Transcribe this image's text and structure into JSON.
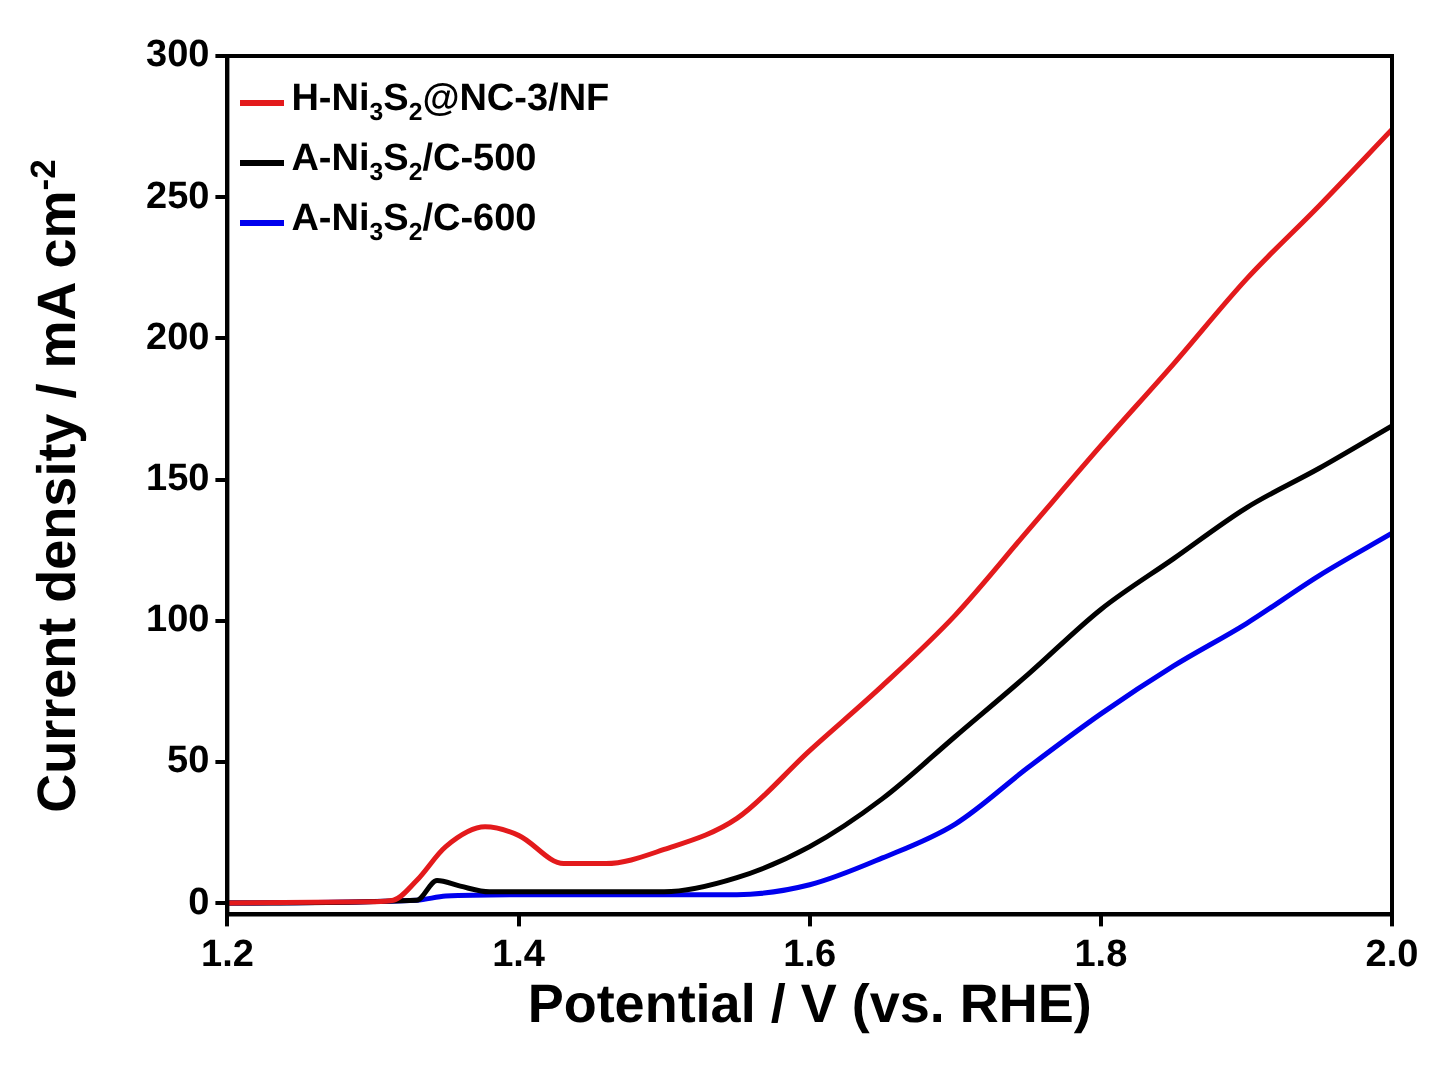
{
  "chart_data": {
    "type": "line",
    "xlabel": "Potential / V (vs. RHE)",
    "ylabel": "Current density / mA cm$^{-2}$",
    "xlim": [
      1.2,
      2.0
    ],
    "xticks": [
      {
        "value": 1.2,
        "label": "1.2"
      },
      {
        "value": 1.4,
        "label": "1.4"
      },
      {
        "value": 1.6,
        "label": "1.6"
      },
      {
        "value": 1.8,
        "label": "1.8"
      },
      {
        "value": 2.0,
        "label": "2.0"
      }
    ],
    "ylim": [
      -4,
      300
    ],
    "yticks": [
      0,
      50,
      100,
      150,
      200,
      250,
      300
    ],
    "grid": false,
    "legend": "top left",
    "marker": "none",
    "line_style": "solid",
    "series": [
      {
        "name": "H-Ni$_{3}$S$_{2}$@NC-3/NF",
        "color": "#e31a1c",
        "x": [
          1.2,
          1.3,
          1.314,
          1.33,
          1.35,
          1.377,
          1.4,
          1.431,
          1.46,
          1.5,
          1.55,
          1.6,
          1.65,
          1.7,
          1.75,
          1.8,
          1.85,
          1.9,
          1.95,
          2.0
        ],
        "values": [
          0,
          0.5,
          1,
          8,
          20,
          27,
          24,
          14,
          14,
          19,
          30,
          54,
          77,
          102,
          132,
          162,
          191,
          221,
          247,
          274
        ]
      },
      {
        "name": "A-Ni$_{3}$S$_{2}$/C-500",
        "color": "#000000",
        "x": [
          1.2,
          1.33,
          1.344,
          1.36,
          1.38,
          1.42,
          1.5,
          1.55,
          1.6,
          1.65,
          1.7,
          1.75,
          1.8,
          1.85,
          1.9,
          1.95,
          2.0
        ],
        "values": [
          0,
          1,
          8,
          6,
          4,
          4,
          4,
          9,
          20,
          37,
          59,
          81,
          104,
          122,
          140,
          154,
          169
        ]
      },
      {
        "name": "A-Ni$_{3}$S$_{2}$/C-600",
        "color": "#0000ee",
        "x": [
          1.2,
          1.33,
          1.35,
          1.4,
          1.5,
          1.55,
          1.6,
          1.65,
          1.7,
          1.75,
          1.8,
          1.85,
          1.9,
          1.95,
          2.0
        ],
        "values": [
          0,
          1,
          2.5,
          3,
          3,
          3,
          6.5,
          16,
          28,
          48,
          67,
          84,
          99,
          116,
          131
        ]
      }
    ]
  }
}
